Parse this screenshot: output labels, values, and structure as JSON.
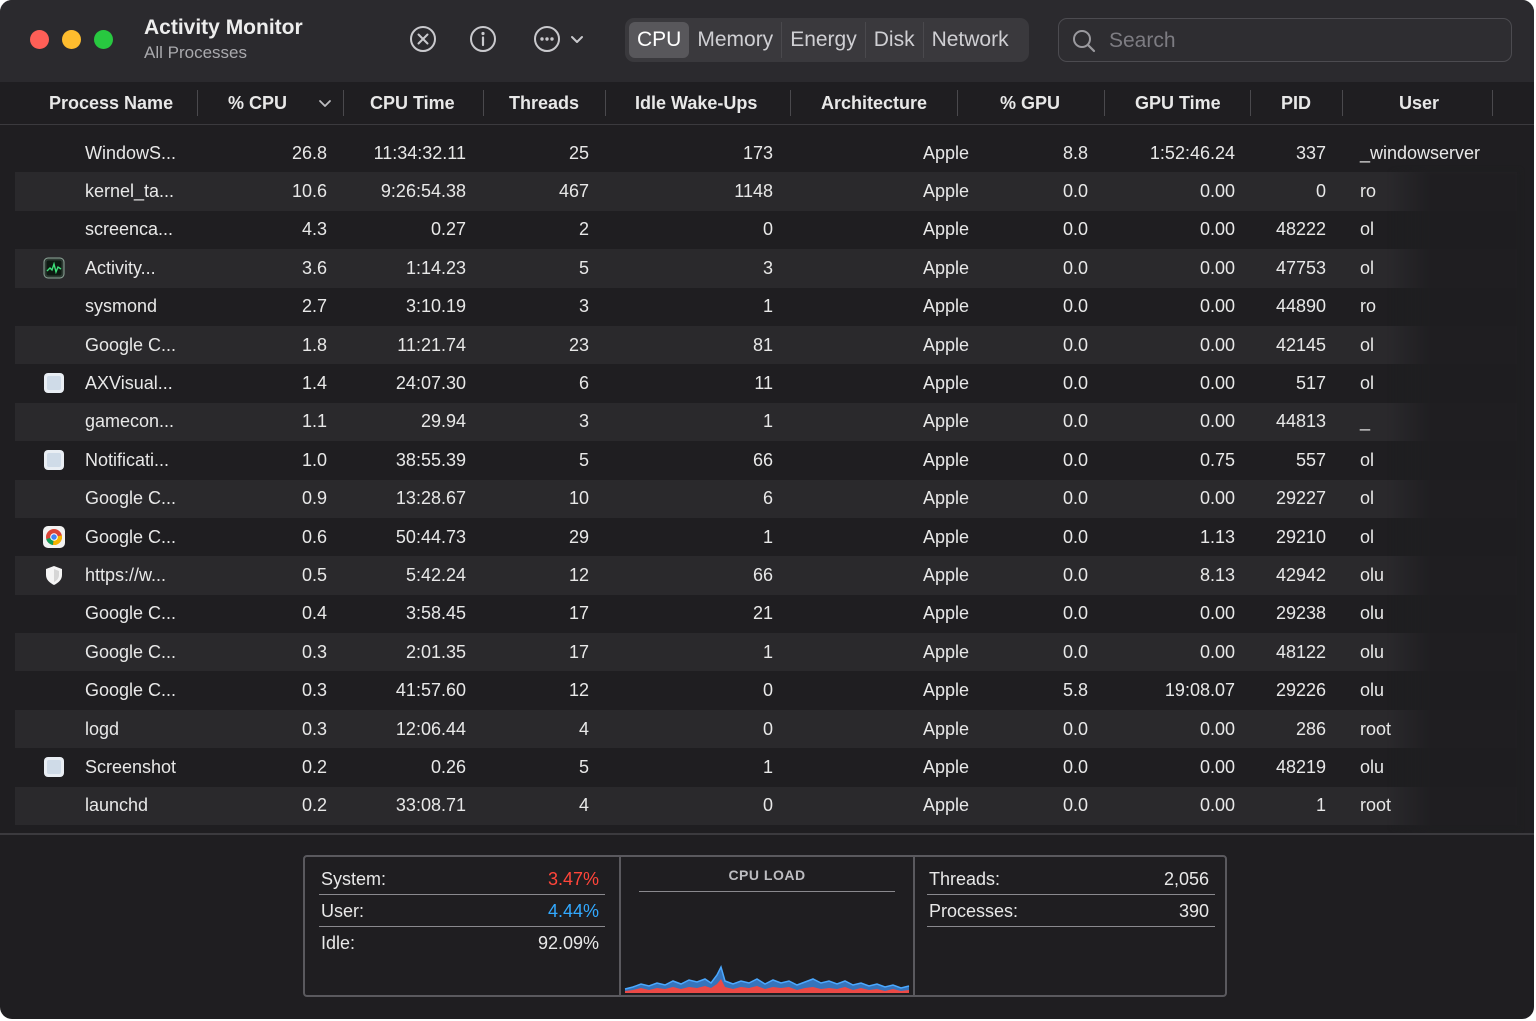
{
  "window": {
    "title": "Activity Monitor",
    "subtitle": "All Processes"
  },
  "toolbar": {
    "icons": [
      "stop-process-icon",
      "info-icon",
      "more-actions-icon",
      "chevron-down-icon"
    ]
  },
  "tabs": [
    {
      "label": "CPU",
      "active": true
    },
    {
      "label": "Memory",
      "active": false
    },
    {
      "label": "Energy",
      "active": false
    },
    {
      "label": "Disk",
      "active": false
    },
    {
      "label": "Network",
      "active": false
    }
  ],
  "search": {
    "placeholder": "Search",
    "value": ""
  },
  "columns": [
    "Process Name",
    "% CPU",
    "CPU Time",
    "Threads",
    "Idle Wake-Ups",
    "Architecture",
    "% GPU",
    "GPU Time",
    "PID",
    "User"
  ],
  "sort": {
    "column": "% CPU",
    "direction": "descending"
  },
  "processes": [
    {
      "name": "WindowS...",
      "cpu": "26.8",
      "cpu_time": "11:34:32.11",
      "threads": "25",
      "wakeups": "173",
      "arch": "Apple",
      "gpu": "8.8",
      "gpu_time": "1:52:46.24",
      "pid": "337",
      "user": "_windowserver",
      "icon": "none"
    },
    {
      "name": "kernel_ta...",
      "cpu": "10.6",
      "cpu_time": "9:26:54.38",
      "threads": "467",
      "wakeups": "1148",
      "arch": "Apple",
      "gpu": "0.0",
      "gpu_time": "0.00",
      "pid": "0",
      "user": "ro",
      "icon": "none"
    },
    {
      "name": "screenca...",
      "cpu": "4.3",
      "cpu_time": "0.27",
      "threads": "2",
      "wakeups": "0",
      "arch": "Apple",
      "gpu": "0.0",
      "gpu_time": "0.00",
      "pid": "48222",
      "user": "ol",
      "icon": "none"
    },
    {
      "name": "Activity...",
      "cpu": "3.6",
      "cpu_time": "1:14.23",
      "threads": "5",
      "wakeups": "3",
      "arch": "Apple",
      "gpu": "0.0",
      "gpu_time": "0.00",
      "pid": "47753",
      "user": "ol",
      "icon": "activity-monitor-icon"
    },
    {
      "name": "sysmond",
      "cpu": "2.7",
      "cpu_time": "3:10.19",
      "threads": "3",
      "wakeups": "1",
      "arch": "Apple",
      "gpu": "0.0",
      "gpu_time": "0.00",
      "pid": "44890",
      "user": "ro",
      "icon": "none"
    },
    {
      "name": "Google C...",
      "cpu": "1.8",
      "cpu_time": "11:21.74",
      "threads": "23",
      "wakeups": "81",
      "arch": "Apple",
      "gpu": "0.0",
      "gpu_time": "0.00",
      "pid": "42145",
      "user": "ol",
      "icon": "none"
    },
    {
      "name": "AXVisual...",
      "cpu": "1.4",
      "cpu_time": "24:07.30",
      "threads": "6",
      "wakeups": "11",
      "arch": "Apple",
      "gpu": "0.0",
      "gpu_time": "0.00",
      "pid": "517",
      "user": "ol",
      "icon": "generic-app-icon"
    },
    {
      "name": "gamecon...",
      "cpu": "1.1",
      "cpu_time": "29.94",
      "threads": "3",
      "wakeups": "1",
      "arch": "Apple",
      "gpu": "0.0",
      "gpu_time": "0.00",
      "pid": "44813",
      "user": "_",
      "icon": "none"
    },
    {
      "name": "Notificati...",
      "cpu": "1.0",
      "cpu_time": "38:55.39",
      "threads": "5",
      "wakeups": "66",
      "arch": "Apple",
      "gpu": "0.0",
      "gpu_time": "0.75",
      "pid": "557",
      "user": "ol",
      "icon": "generic-app-icon"
    },
    {
      "name": "Google C...",
      "cpu": "0.9",
      "cpu_time": "13:28.67",
      "threads": "10",
      "wakeups": "6",
      "arch": "Apple",
      "gpu": "0.0",
      "gpu_time": "0.00",
      "pid": "29227",
      "user": "ol",
      "icon": "none"
    },
    {
      "name": "Google C...",
      "cpu": "0.6",
      "cpu_time": "50:44.73",
      "threads": "29",
      "wakeups": "1",
      "arch": "Apple",
      "gpu": "0.0",
      "gpu_time": "1.13",
      "pid": "29210",
      "user": "ol",
      "icon": "chrome-icon"
    },
    {
      "name": "https://w...",
      "cpu": "0.5",
      "cpu_time": "5:42.24",
      "threads": "12",
      "wakeups": "66",
      "arch": "Apple",
      "gpu": "0.0",
      "gpu_time": "8.13",
      "pid": "42942",
      "user": "olu",
      "icon": "shield-icon"
    },
    {
      "name": "Google C...",
      "cpu": "0.4",
      "cpu_time": "3:58.45",
      "threads": "17",
      "wakeups": "21",
      "arch": "Apple",
      "gpu": "0.0",
      "gpu_time": "0.00",
      "pid": "29238",
      "user": "olu",
      "icon": "none"
    },
    {
      "name": "Google C...",
      "cpu": "0.3",
      "cpu_time": "2:01.35",
      "threads": "17",
      "wakeups": "1",
      "arch": "Apple",
      "gpu": "0.0",
      "gpu_time": "0.00",
      "pid": "48122",
      "user": "olu",
      "icon": "none"
    },
    {
      "name": "Google C...",
      "cpu": "0.3",
      "cpu_time": "41:57.60",
      "threads": "12",
      "wakeups": "0",
      "arch": "Apple",
      "gpu": "5.8",
      "gpu_time": "19:08.07",
      "pid": "29226",
      "user": "olu",
      "icon": "none"
    },
    {
      "name": "logd",
      "cpu": "0.3",
      "cpu_time": "12:06.44",
      "threads": "4",
      "wakeups": "0",
      "arch": "Apple",
      "gpu": "0.0",
      "gpu_time": "0.00",
      "pid": "286",
      "user": "root",
      "icon": "none"
    },
    {
      "name": "Screenshot",
      "cpu": "0.2",
      "cpu_time": "0.26",
      "threads": "5",
      "wakeups": "1",
      "arch": "Apple",
      "gpu": "0.0",
      "gpu_time": "0.00",
      "pid": "48219",
      "user": "olu",
      "icon": "generic-app-icon"
    },
    {
      "name": "launchd",
      "cpu": "0.2",
      "cpu_time": "33:08.71",
      "threads": "4",
      "wakeups": "0",
      "arch": "Apple",
      "gpu": "0.0",
      "gpu_time": "0.00",
      "pid": "1",
      "user": "root",
      "icon": "none"
    }
  ],
  "summary": {
    "system_label": "System:",
    "system_value": "3.47%",
    "user_label": "User:",
    "user_value": "4.44%",
    "idle_label": "Idle:",
    "idle_value": "92.09%",
    "cpu_load_title": "CPU LOAD",
    "threads_label": "Threads:",
    "threads_value": "2,056",
    "processes_label": "Processes:",
    "processes_value": "390"
  },
  "colors": {
    "system": "#ff453a",
    "user": "#32a9ff",
    "background": "#1f1e21",
    "close": "#ff5f57",
    "minimize": "#febc2e",
    "zoom": "#28c840"
  }
}
